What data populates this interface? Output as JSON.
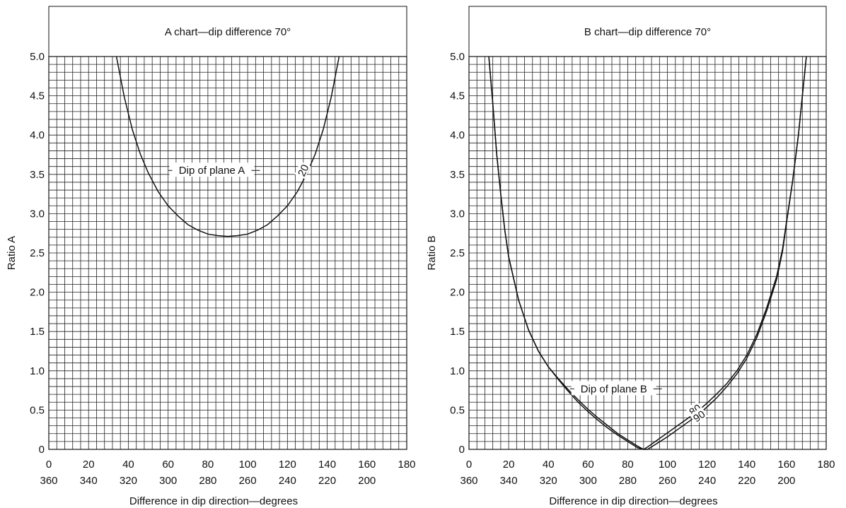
{
  "chart_data": [
    {
      "type": "line",
      "title": "A chart—dip difference 70°",
      "xlabel": "Difference in dip direction—degrees",
      "ylabel": "Ratio A",
      "xlim": [
        0,
        180
      ],
      "ylim": [
        0,
        5.0
      ],
      "x_ticks": [
        "0",
        "20",
        "40",
        "60",
        "80",
        "100",
        "120",
        "140",
        "160",
        "180"
      ],
      "x_ticks_alt": [
        "360",
        "340",
        "320",
        "300",
        "280",
        "260",
        "240",
        "220",
        "200"
      ],
      "y_ticks": [
        "0",
        "0.5",
        "1.0",
        "1.5",
        "2.0",
        "2.5",
        "3.0",
        "3.5",
        "4.0",
        "4.5",
        "5.0"
      ],
      "grid": true,
      "annotation": "Dip of plane A",
      "series": [
        {
          "name": "20",
          "x": [
            34,
            38,
            42,
            46,
            50,
            55,
            60,
            65,
            70,
            75,
            80,
            85,
            90,
            95,
            100,
            105,
            110,
            115,
            120,
            125,
            130,
            134,
            138,
            142,
            146
          ],
          "y": [
            5.0,
            4.48,
            4.07,
            3.76,
            3.52,
            3.28,
            3.1,
            2.97,
            2.86,
            2.79,
            2.74,
            2.72,
            2.71,
            2.72,
            2.74,
            2.79,
            2.86,
            2.97,
            3.1,
            3.28,
            3.52,
            3.76,
            4.07,
            4.48,
            5.0
          ]
        }
      ]
    },
    {
      "type": "line",
      "title": "B chart—dip difference 70°",
      "xlabel": "Difference in dip direction—degrees",
      "ylabel": "Ratio B",
      "xlim": [
        0,
        180
      ],
      "ylim": [
        0,
        5.0
      ],
      "x_ticks": [
        "0",
        "20",
        "40",
        "60",
        "80",
        "100",
        "120",
        "140",
        "160",
        "180"
      ],
      "x_ticks_alt": [
        "360",
        "340",
        "320",
        "300",
        "280",
        "260",
        "240",
        "220",
        "200"
      ],
      "y_ticks": [
        "0",
        "0.5",
        "1.0",
        "1.5",
        "2.0",
        "2.5",
        "3.0",
        "3.5",
        "4.0",
        "4.5",
        "5.0"
      ],
      "grid": true,
      "annotation": "Dip of plane B",
      "series": [
        {
          "name": "80",
          "x": [
            10,
            12,
            14,
            16,
            18,
            20,
            25,
            30,
            35,
            40,
            45,
            50,
            55,
            60,
            65,
            70,
            75,
            80,
            85,
            88,
            90,
            95,
            100,
            105,
            110,
            115,
            120,
            125,
            130,
            135,
            140,
            145,
            150,
            155,
            158,
            160,
            163,
            166,
            168,
            170
          ],
          "y": [
            5.0,
            4.4,
            3.75,
            3.25,
            2.8,
            2.45,
            1.9,
            1.52,
            1.25,
            1.05,
            0.9,
            0.76,
            0.63,
            0.51,
            0.4,
            0.3,
            0.2,
            0.12,
            0.04,
            0.0,
            0.03,
            0.12,
            0.21,
            0.3,
            0.39,
            0.48,
            0.59,
            0.71,
            0.84,
            1.0,
            1.2,
            1.46,
            1.8,
            2.2,
            2.55,
            2.9,
            3.4,
            4.0,
            4.5,
            5.0
          ]
        },
        {
          "name": "90",
          "x": [
            10,
            12,
            14,
            16,
            18,
            20,
            25,
            30,
            35,
            40,
            45,
            50,
            55,
            60,
            65,
            70,
            75,
            80,
            85,
            88,
            90,
            95,
            100,
            105,
            110,
            115,
            120,
            125,
            130,
            135,
            140,
            145,
            150,
            155,
            158,
            160,
            163,
            166,
            168,
            170
          ],
          "y": [
            5.0,
            4.4,
            3.75,
            3.25,
            2.8,
            2.45,
            1.9,
            1.52,
            1.25,
            1.05,
            0.89,
            0.74,
            0.6,
            0.48,
            0.37,
            0.27,
            0.18,
            0.1,
            0.02,
            0.0,
            0.0,
            0.08,
            0.16,
            0.25,
            0.34,
            0.43,
            0.54,
            0.66,
            0.8,
            0.96,
            1.16,
            1.42,
            1.76,
            2.16,
            2.52,
            2.88,
            3.4,
            4.0,
            4.5,
            5.0
          ]
        }
      ]
    }
  ]
}
